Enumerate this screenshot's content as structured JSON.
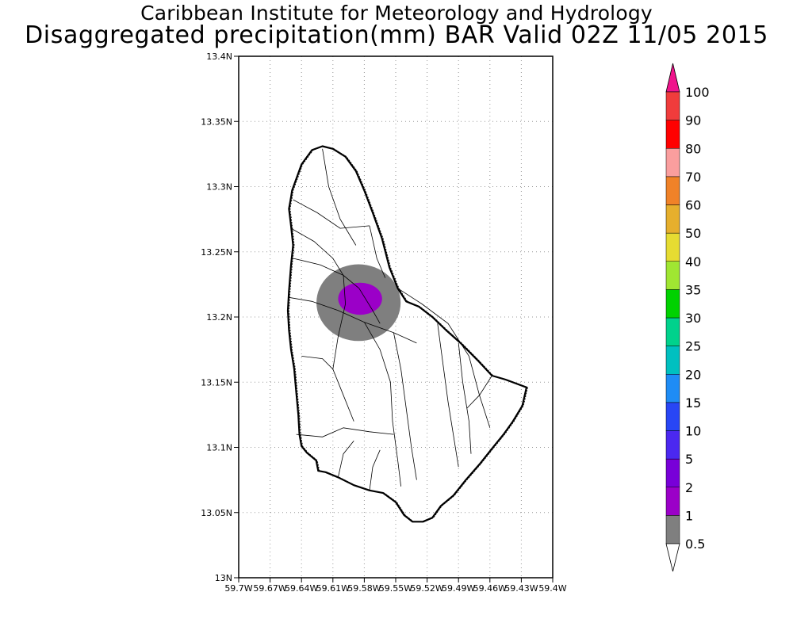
{
  "title": {
    "line1": "Caribbean Institute for Meteorology and Hydrology",
    "line2": "Disaggregated precipitation(mm) BAR Valid 02Z 11/05 2015"
  },
  "map": {
    "lat_range": [
      13.0,
      13.4
    ],
    "lon_range": [
      -59.7,
      -59.4
    ],
    "lat_ticks": [
      {
        "value": 13.0,
        "label": "13N"
      },
      {
        "value": 13.05,
        "label": "13.05N"
      },
      {
        "value": 13.1,
        "label": "13.1N"
      },
      {
        "value": 13.15,
        "label": "13.15N"
      },
      {
        "value": 13.2,
        "label": "13.2N"
      },
      {
        "value": 13.25,
        "label": "13.25N"
      },
      {
        "value": 13.3,
        "label": "13.3N"
      },
      {
        "value": 13.35,
        "label": "13.35N"
      },
      {
        "value": 13.4,
        "label": "13.4N"
      }
    ],
    "lon_ticks": [
      {
        "value": -59.7,
        "label": "59.7W"
      },
      {
        "value": -59.67,
        "label": "59.67W"
      },
      {
        "value": -59.64,
        "label": "59.64W"
      },
      {
        "value": -59.61,
        "label": "59.61W"
      },
      {
        "value": -59.58,
        "label": "59.58W"
      },
      {
        "value": -59.55,
        "label": "59.55W"
      },
      {
        "value": -59.52,
        "label": "59.52W"
      },
      {
        "value": -59.49,
        "label": "59.49W"
      },
      {
        "value": -59.46,
        "label": "59.46W"
      },
      {
        "value": -59.43,
        "label": "59.43W"
      },
      {
        "value": -59.4,
        "label": "59.4W"
      }
    ],
    "grid": "dotted",
    "island": "Barbados",
    "coastline": [
      [
        -59.649,
        13.297
      ],
      [
        -59.64,
        13.317
      ],
      [
        -59.63,
        13.328
      ],
      [
        -59.62,
        13.331
      ],
      [
        -59.61,
        13.329
      ],
      [
        -59.598,
        13.323
      ],
      [
        -59.588,
        13.312
      ],
      [
        -59.58,
        13.297
      ],
      [
        -59.572,
        13.28
      ],
      [
        -59.563,
        13.26
      ],
      [
        -59.556,
        13.238
      ],
      [
        -59.548,
        13.222
      ],
      [
        -59.54,
        13.212
      ],
      [
        -59.528,
        13.208
      ],
      [
        -59.515,
        13.2
      ],
      [
        -59.502,
        13.19
      ],
      [
        -59.488,
        13.18
      ],
      [
        -59.472,
        13.167
      ],
      [
        -59.458,
        13.155
      ],
      [
        -59.445,
        13.152
      ],
      [
        -59.425,
        13.146
      ],
      [
        -59.429,
        13.132
      ],
      [
        -59.438,
        13.12
      ],
      [
        -59.447,
        13.11
      ],
      [
        -59.458,
        13.099
      ],
      [
        -59.47,
        13.087
      ],
      [
        -59.483,
        13.075
      ],
      [
        -59.495,
        13.063
      ],
      [
        -59.507,
        13.055
      ],
      [
        -59.515,
        13.046
      ],
      [
        -59.524,
        13.043
      ],
      [
        -59.534,
        13.043
      ],
      [
        -59.542,
        13.048
      ],
      [
        -59.55,
        13.058
      ],
      [
        -59.562,
        13.065
      ],
      [
        -59.575,
        13.067
      ],
      [
        -59.59,
        13.071
      ],
      [
        -59.605,
        13.077
      ],
      [
        -59.617,
        13.081
      ],
      [
        -59.624,
        13.082
      ],
      [
        -59.626,
        13.09
      ],
      [
        -59.635,
        13.096
      ],
      [
        -59.64,
        13.101
      ],
      [
        -59.642,
        13.11
      ],
      [
        -59.643,
        13.125
      ],
      [
        -59.645,
        13.142
      ],
      [
        -59.647,
        13.16
      ],
      [
        -59.65,
        13.175
      ],
      [
        -59.652,
        13.19
      ],
      [
        -59.653,
        13.205
      ],
      [
        -59.652,
        13.22
      ],
      [
        -59.65,
        13.24
      ],
      [
        -59.648,
        13.255
      ],
      [
        -59.65,
        13.27
      ],
      [
        -59.652,
        13.283
      ],
      [
        -59.65,
        13.292
      ]
    ],
    "rivers": [
      [
        [
          -59.62,
          13.329
        ],
        [
          -59.614,
          13.3
        ],
        [
          -59.603,
          13.275
        ],
        [
          -59.588,
          13.255
        ]
      ],
      [
        [
          -59.648,
          13.29
        ],
        [
          -59.625,
          13.28
        ],
        [
          -59.603,
          13.268
        ],
        [
          -59.575,
          13.27
        ]
      ],
      [
        [
          -59.65,
          13.268
        ],
        [
          -59.628,
          13.258
        ],
        [
          -59.61,
          13.245
        ],
        [
          -59.6,
          13.232
        ]
      ],
      [
        [
          -59.648,
          13.245
        ],
        [
          -59.622,
          13.24
        ],
        [
          -59.6,
          13.232
        ],
        [
          -59.585,
          13.222
        ]
      ],
      [
        [
          -59.652,
          13.215
        ],
        [
          -59.63,
          13.212
        ],
        [
          -59.605,
          13.205
        ],
        [
          -59.58,
          13.196
        ],
        [
          -59.552,
          13.188
        ],
        [
          -59.53,
          13.18
        ]
      ],
      [
        [
          -59.6,
          13.232
        ],
        [
          -59.598,
          13.21
        ],
        [
          -59.605,
          13.185
        ],
        [
          -59.61,
          13.16
        ]
      ],
      [
        [
          -59.58,
          13.196
        ],
        [
          -59.565,
          13.175
        ],
        [
          -59.555,
          13.15
        ],
        [
          -59.553,
          13.12
        ],
        [
          -59.548,
          13.09
        ],
        [
          -59.545,
          13.07
        ]
      ],
      [
        [
          -59.552,
          13.188
        ],
        [
          -59.545,
          13.16
        ],
        [
          -59.54,
          13.13
        ],
        [
          -59.535,
          13.1
        ],
        [
          -59.53,
          13.075
        ]
      ],
      [
        [
          -59.548,
          13.222
        ],
        [
          -59.525,
          13.21
        ],
        [
          -59.5,
          13.195
        ],
        [
          -59.48,
          13.17
        ],
        [
          -59.47,
          13.14
        ],
        [
          -59.46,
          13.115
        ]
      ],
      [
        [
          -59.49,
          13.18
        ],
        [
          -59.486,
          13.15
        ],
        [
          -59.48,
          13.12
        ],
        [
          -59.478,
          13.095
        ]
      ],
      [
        [
          -59.51,
          13.195
        ],
        [
          -59.505,
          13.165
        ],
        [
          -59.5,
          13.135
        ],
        [
          -59.495,
          13.11
        ],
        [
          -59.49,
          13.085
        ]
      ],
      [
        [
          -59.645,
          13.11
        ],
        [
          -59.62,
          13.108
        ],
        [
          -59.6,
          13.115
        ],
        [
          -59.575,
          13.112
        ],
        [
          -59.552,
          13.11
        ]
      ],
      [
        [
          -59.64,
          13.17
        ],
        [
          -59.62,
          13.168
        ],
        [
          -59.61,
          13.16
        ],
        [
          -59.6,
          13.14
        ],
        [
          -59.59,
          13.12
        ]
      ],
      [
        [
          -59.458,
          13.155
        ],
        [
          -59.47,
          13.14
        ],
        [
          -59.482,
          13.13
        ]
      ],
      [
        [
          -59.575,
          13.27
        ],
        [
          -59.568,
          13.245
        ],
        [
          -59.56,
          13.23
        ]
      ],
      [
        [
          -59.585,
          13.222
        ],
        [
          -59.572,
          13.205
        ],
        [
          -59.565,
          13.195
        ]
      ],
      [
        [
          -59.605,
          13.077
        ],
        [
          -59.6,
          13.095
        ],
        [
          -59.59,
          13.105
        ]
      ],
      [
        [
          -59.575,
          13.067
        ],
        [
          -59.572,
          13.085
        ],
        [
          -59.565,
          13.098
        ]
      ]
    ]
  },
  "rainfall": [
    {
      "level": "0.5-1 mm",
      "color": "#7f7f7f",
      "center": [
        -59.5855,
        13.211
      ],
      "radius_deg": [
        0.0402,
        0.0294
      ]
    },
    {
      "level": "1-2 mm",
      "color": "#9b00c8",
      "center": [
        -59.584,
        13.214
      ],
      "radius_deg": [
        0.021,
        0.0123
      ]
    }
  ],
  "colorbar": {
    "levels": [
      {
        "label": "0.5",
        "color": "#7f7f7f"
      },
      {
        "label": "1",
        "color": "#9b00c8"
      },
      {
        "label": "2",
        "color": "#7800d8"
      },
      {
        "label": "5",
        "color": "#4b28f0"
      },
      {
        "label": "10",
        "color": "#2846f5"
      },
      {
        "label": "15",
        "color": "#1e8cf5"
      },
      {
        "label": "20",
        "color": "#00c0c0"
      },
      {
        "label": "25",
        "color": "#00d28c"
      },
      {
        "label": "30",
        "color": "#00d200"
      },
      {
        "label": "35",
        "color": "#a0e632"
      },
      {
        "label": "40",
        "color": "#e6dc32"
      },
      {
        "label": "50",
        "color": "#e6af2d"
      },
      {
        "label": "60",
        "color": "#f08228"
      },
      {
        "label": "70",
        "color": "#fa9e9e"
      },
      {
        "label": "80",
        "color": "#ff0000"
      },
      {
        "label": "90",
        "color": "#f03c3c"
      },
      {
        "label": "100",
        "color": "#f0148c"
      }
    ],
    "below_color": "#ffffff",
    "above_color": "#f0148c"
  }
}
